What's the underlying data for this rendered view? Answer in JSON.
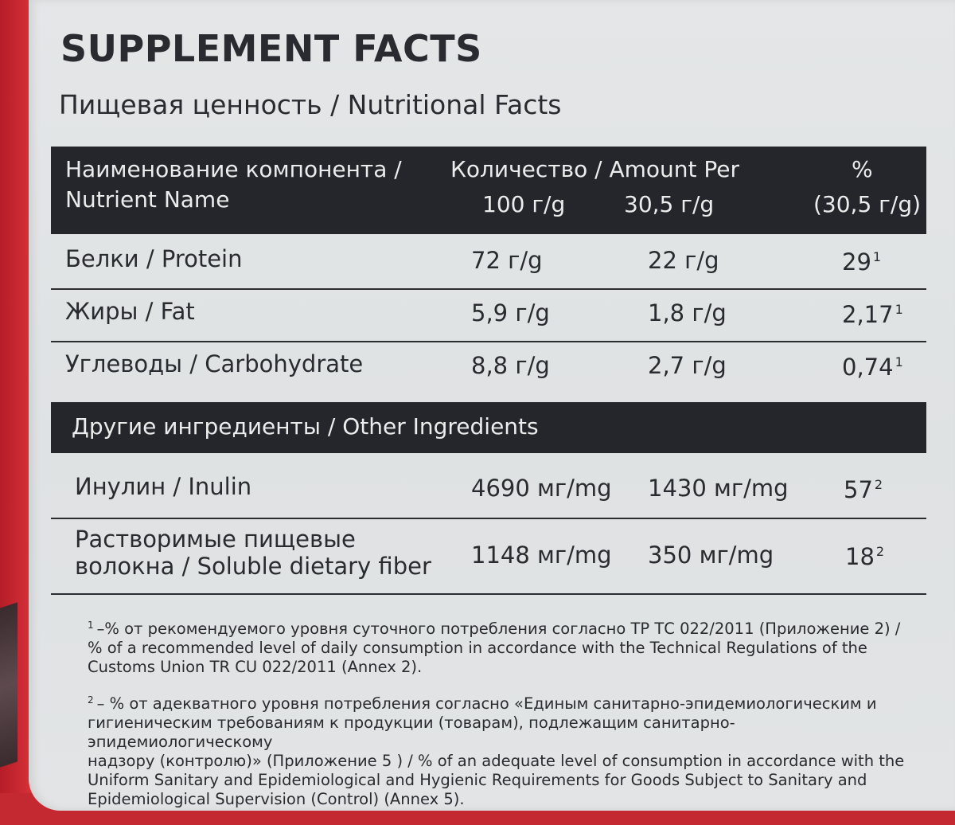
{
  "header": {
    "title": "SUPPLEMENT FACTS",
    "subtitle": "Пищевая ценность / Nutritional Facts"
  },
  "table": {
    "col_name_line1": "Наименование компонента /",
    "col_name_line2": "Nutrient Name",
    "col_amount": "Количество / Amount Per",
    "col_100": "100 г/g",
    "col_serving": "30,5 г/g",
    "col_pct": "%",
    "col_pct_serving": "(30,5 г/g)",
    "rows": [
      {
        "name": "Белки / Protein",
        "per100": "72 г/g",
        "perServing": "22 г/g",
        "pct": "29",
        "note": "1"
      },
      {
        "name": "Жиры / Fat",
        "per100": "5,9 г/g",
        "perServing": "1,8 г/g",
        "pct": "2,17",
        "note": "1"
      },
      {
        "name": "Углеводы / Carbohydrate",
        "per100": "8,8 г/g",
        "perServing": "2,7 г/g",
        "pct": "0,74",
        "note": "1"
      }
    ],
    "other_title": "Другие ингредиенты / Other Ingredients",
    "other_rows": [
      {
        "name": "Инулин / Inulin",
        "per100": "4690 мг/mg",
        "perServing": "1430 мг/mg",
        "pct": "57",
        "note": "2"
      },
      {
        "name_line1": "Растворимые пищевые",
        "name_line2": "волокна / Soluble dietary fiber",
        "per100": "1148 мг/mg",
        "perServing": "350 мг/mg",
        "pct": "18",
        "note": "2"
      }
    ]
  },
  "footnotes": {
    "f1_mark": "1",
    "f1_lines": [
      "–% от рекомендуемого уровня суточного потребления согласно ТР ТС 022/2011 (Приложение 2) /",
      "% of a recommended level of daily consumption in accordance with the Technical Regulations of the",
      "Customs Union TR CU 022/2011 (Annex 2)."
    ],
    "f2_mark": "2",
    "f2_lines": [
      "– % от адекватного уровня потребления согласно «Единым санитарно-эпидемиологическим и",
      "гигиеническим требованиям к продукции (товарам), подлежащим санитарно-эпидемиологическому",
      "надзору (контролю)» (Приложение 5 ) / % of an adequate level of consumption in accordance with the",
      "Uniform Sanitary and Epidemiological and Hygienic Requirements for Goods Subject to Sanitary and",
      "Epidemiological Supervision (Control) (Annex 5)."
    ]
  }
}
